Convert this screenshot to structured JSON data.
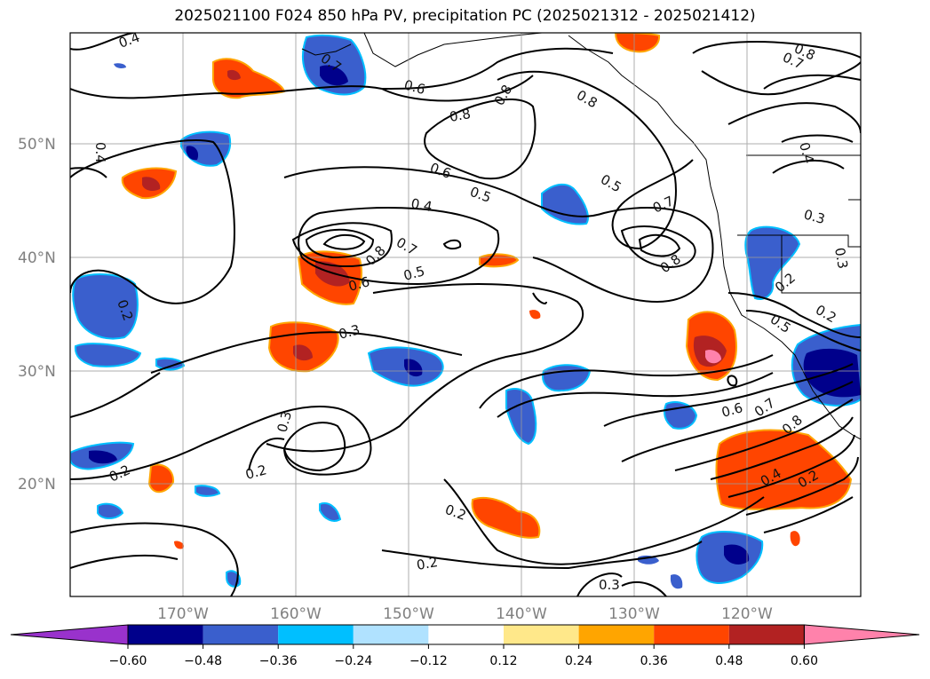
{
  "title": "2025021100 F024 850 hPa PV, precipitation PC (2025021312 - 2025021412)",
  "latitude_labels": [
    "50°N",
    "40°N",
    "30°N",
    "20°N"
  ],
  "longitude_labels": [
    "170°W",
    "160°W",
    "150°W",
    "140°W",
    "130°W",
    "120°W"
  ],
  "colorbar": {
    "tick_labels": [
      "−0.60",
      "−0.48",
      "−0.36",
      "−0.24",
      "−0.12",
      "0.12",
      "0.24",
      "0.36",
      "0.48",
      "0.60"
    ],
    "colors": [
      "#9932cc",
      "#00008b",
      "#3a5fcd",
      "#00bfff",
      "#b0e2ff",
      "#ffffff",
      "#ffe88a",
      "#ffa500",
      "#ff4500",
      "#b22222",
      "#ff82ab"
    ]
  },
  "contour_labels": [
    "0.4",
    "0.6",
    "0.8",
    "0.8",
    "0.7",
    "0.8",
    "0.5",
    "0.6",
    "0.5",
    "0.4",
    "0.7",
    "0.8",
    "0.6",
    "0.5",
    "0.7",
    "0.8",
    "0.4",
    "0.3",
    "0.2",
    "0.3",
    "0.2",
    "0.3",
    "0.2",
    "0.2",
    "0.2",
    "0.6",
    "0.7",
    "0.8",
    "0.4",
    "0.2",
    "0.3",
    "0.2",
    "0.2",
    "0.5",
    "0.3",
    "0.8",
    "0.7",
    "0.4"
  ]
}
